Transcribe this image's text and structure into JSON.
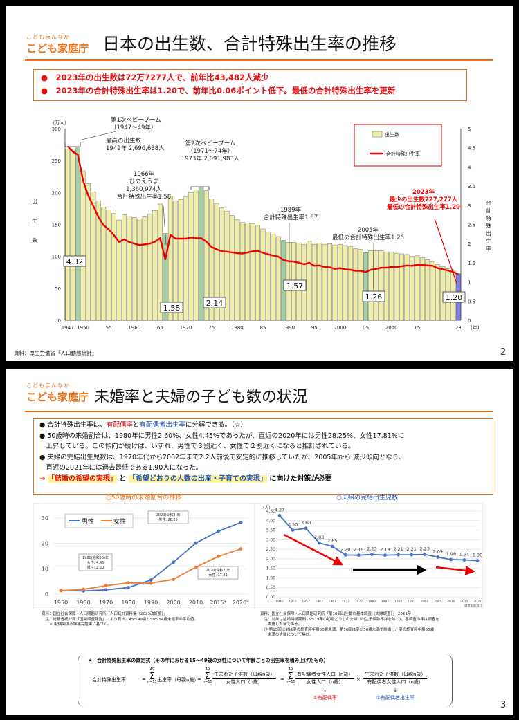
{
  "slide1": {
    "logo_small": "こどもまんなか",
    "logo_big": "こども家庭庁",
    "title": "日本の出生数、合計特殊出生率の推移",
    "bullets": [
      "●　2023年の出生数は72万7277人で、前年比43,482人減少",
      "●　2023年の合計特殊出生率は1.20で、前年比0.06ポイント低下。最低の合計特殊出生率を更新"
    ],
    "source": "資料：厚生労働省「人口動態統計」",
    "page": "2",
    "chart": {
      "left_unit": "（万人）",
      "left_axis_label": "出生数",
      "right_axis_label": "合計特殊出生率",
      "x_suffix": "(年)",
      "legend": [
        "出生数",
        "合計特殊出生率"
      ],
      "annotations": {
        "boom1": [
          "第1次ベビーブーム",
          "（1947〜49年）"
        ],
        "max": [
          "最高の出生数",
          "1949年 2,696,638人"
        ],
        "hinoe": [
          "1966年",
          "ひのえうま",
          "1,360,974人",
          "合計特殊出生率1.58"
        ],
        "boom2": [
          "第2次ベビーブーム",
          "（1971〜74年）",
          "1973年 2,091,983人"
        ],
        "y1989": [
          "1989年",
          "合計特殊出生率1.57"
        ],
        "y2005": [
          "2005年",
          "最低の合計特殊出生率1.26"
        ],
        "y2023": [
          "2023年",
          "最少の出生数727,277人",
          "最低の合計特殊出生率1.20"
        ]
      },
      "value_labels": [
        "4.32",
        "1.58",
        "2.14",
        "1.57",
        "1.26",
        "1.20"
      ]
    }
  },
  "slide2": {
    "logo_small": "こどもまんなか",
    "logo_big": "こども家庭庁",
    "title": "未婚率と夫婦の子ども数の状況",
    "bullets": [
      "● 合計特殊出生率は、有配偶率と有配偶者出生率に分解できる。（☆）",
      "● 50歳時の未婚割合は、1980年に男性2.60%、女性4.45%であったが、直近の2020年には男性28.25%、女性17.81%に",
      "　上昇している。この傾向が続けば、いずれ、男性で３割近く、女性で２割近くになると推計されている。",
      "● 夫婦の完結出生児数は、1970年代から2002年まで2.2人前後で安定的に推移していたが、2005年から 減少傾向となり、",
      "　直近の2021年には過去最低である1.90人になった。"
    ],
    "b1_key": "有配偶率",
    "b1_key2": "有配偶者出生率",
    "conclusion_arrow": "⇒",
    "conclusion_a": "「結婚の希望の実現」",
    "conclusion_and": "と",
    "conclusion_b": "「希望どおりの人数の出産・子育ての実現」",
    "conclusion_end": "に向けた対策が必要",
    "chart1_caption": "○50歳時の未婚割合の推移",
    "chart2_caption": "○夫婦の完結出生児数",
    "chart1_notes": [
      "資料：国立社会保障・人口問題研究所「人口統計資料集（2023改訂版）」",
      "　注：総務省統計局「国勢調査報告」により算出。45〜49歳と50〜54歳未婚率の平均値。",
      "　　＊ 配偶関係不詳補完結果に基づく。"
    ],
    "chart2_notes": [
      "資料：国立社会保障・人口問題研究所「第16回出生動向基本調査（夫婦調査）」(2021年)",
      "　注：対象は結婚持続期間15〜19年の初婚どうしの夫婦（出生子供数不詳を除く）。各調査の年は調査を",
      "　　実施した年である。",
      "　注 第15回以前は妻の調査時年齢50歳未満、第16回は妻が50歳未満で結婚し、妻の調査時年齢55歳",
      "　　未満の夫婦について集計。"
    ],
    "formula_title": "★　合計特殊出生率の算定式（その年における15〜49歳の女性について年齢ごとの出生率を積み上げたもの）",
    "formula_lhs": "合計特殊出生率",
    "formula_t1": "出生率（母親n歳）",
    "formula_t2_num": "生まれた子供数（母親n歳）",
    "formula_t2_den": "女性人口（n歳）",
    "formula_t3_num": "有配偶者女性人口（n歳）",
    "formula_t3_den": "女性人口（n歳）",
    "formula_t4_num": "生まれた子供数（母親n歳）",
    "formula_t4_den": "有配偶者女性人口（n歳）",
    "formula_sum_top": "49",
    "formula_sum_bot": "n=15",
    "formula_tag1": "①有配偶率",
    "formula_tag2": "②有配偶者出生率",
    "page": "3"
  },
  "chart_data": [
    {
      "type": "bar",
      "title": "日本の出生数、合計特殊出生率の推移",
      "x": [
        1947,
        1948,
        1949,
        1950,
        1951,
        1952,
        1953,
        1954,
        1955,
        1956,
        1957,
        1958,
        1959,
        1960,
        1961,
        1962,
        1963,
        1964,
        1965,
        1966,
        1967,
        1968,
        1969,
        1970,
        1971,
        1972,
        1973,
        1974,
        1975,
        1976,
        1977,
        1978,
        1979,
        1980,
        1981,
        1982,
        1983,
        1984,
        1985,
        1986,
        1987,
        1988,
        1989,
        1990,
        1991,
        1992,
        1993,
        1994,
        1995,
        1996,
        1997,
        1998,
        1999,
        2000,
        2001,
        2002,
        2003,
        2004,
        2005,
        2006,
        2007,
        2008,
        2009,
        2010,
        2011,
        2012,
        2013,
        2014,
        2015,
        2016,
        2017,
        2018,
        2019,
        2020,
        2021,
        2022,
        2023
      ],
      "x_ticks": [
        "1947",
        "1950",
        "55",
        "1960",
        "65",
        "1970",
        "75",
        "1980",
        "85",
        "1990",
        "95",
        "2000",
        "05",
        "2010",
        "15",
        "23"
      ],
      "series": [
        {
          "name": "出生数",
          "axis": "left",
          "values": [
            268,
            268,
            270,
            234,
            214,
            201,
            187,
            177,
            173,
            167,
            157,
            165,
            163,
            161,
            159,
            162,
            166,
            172,
            182,
            136,
            194,
            187,
            189,
            193,
            200,
            204,
            209,
            203,
            190,
            183,
            176,
            171,
            164,
            158,
            153,
            152,
            151,
            149,
            143,
            138,
            135,
            131,
            125,
            122,
            122,
            121,
            119,
            124,
            119,
            121,
            119,
            120,
            118,
            119,
            117,
            115,
            112,
            111,
            106,
            109,
            109,
            109,
            107,
            107,
            105,
            104,
            103,
            100,
            101,
            98,
            95,
            92,
            87,
            84,
            81,
            77,
            73
          ]
        },
        {
          "name": "合計特殊出生率",
          "axis": "right",
          "values": [
            4.54,
            4.4,
            4.32,
            3.65,
            3.26,
            2.98,
            2.69,
            2.48,
            2.37,
            2.22,
            2.04,
            2.11,
            2.04,
            2.0,
            1.96,
            1.98,
            2.0,
            2.05,
            2.14,
            1.58,
            2.23,
            2.13,
            2.13,
            2.13,
            2.16,
            2.14,
            2.14,
            2.05,
            1.91,
            1.85,
            1.8,
            1.79,
            1.77,
            1.75,
            1.74,
            1.77,
            1.8,
            1.81,
            1.76,
            1.72,
            1.69,
            1.66,
            1.57,
            1.54,
            1.53,
            1.5,
            1.46,
            1.5,
            1.42,
            1.43,
            1.39,
            1.38,
            1.34,
            1.36,
            1.33,
            1.32,
            1.29,
            1.29,
            1.26,
            1.32,
            1.34,
            1.37,
            1.37,
            1.39,
            1.39,
            1.41,
            1.43,
            1.42,
            1.45,
            1.44,
            1.43,
            1.42,
            1.36,
            1.33,
            1.3,
            1.26,
            1.2
          ]
        }
      ],
      "ylim_left": [
        0,
        300
      ],
      "ylim_right": [
        0,
        5
      ],
      "y_ticks_left": [
        "0",
        "50",
        "100",
        "150",
        "200",
        "250",
        "300"
      ],
      "y_ticks_right": [
        "0",
        "0.5",
        "1",
        "1.5",
        "2",
        "2.5",
        "3",
        "3.5",
        "4",
        "4.5",
        "5"
      ],
      "highlight_years": [
        1949,
        1966,
        1973,
        1989,
        2005,
        2023
      ]
    },
    {
      "type": "line",
      "title": "50歳時の未婚割合の推移",
      "x": [
        "1950",
        "1960",
        "1970",
        "1980",
        "1990",
        "2000",
        "2010",
        "2015*",
        "2020*"
      ],
      "series": [
        {
          "name": "男性",
          "color": "#4472c4",
          "values": [
            1.45,
            1.26,
            1.7,
            2.6,
            5.57,
            12.57,
            20.14,
            24.77,
            28.25
          ]
        },
        {
          "name": "女性",
          "color": "#ed7d31",
          "values": [
            1.35,
            1.88,
            3.33,
            4.45,
            4.33,
            5.82,
            10.61,
            14.89,
            17.81
          ]
        }
      ],
      "ylim": [
        0,
        30
      ],
      "y_ticks": [
        "0",
        "10",
        "20",
        "30"
      ],
      "callouts": [
        [
          "1980(昭和55)年",
          "女性: 4.45",
          "男性: 2.60"
        ],
        [
          "2020(令和2)年",
          "男性: 28.25"
        ],
        [
          "2020(令和2)年",
          "女性: 17.81"
        ]
      ]
    },
    {
      "type": "line",
      "title": "夫婦の完結出生児数",
      "ylabel": "(人)",
      "x": [
        "1940",
        "1952",
        "1957",
        "1962",
        "1967",
        "1972",
        "1977",
        "1982",
        "1987",
        "1992",
        "1997",
        "2002",
        "2005",
        "2010",
        "2015",
        "2021"
      ],
      "x_suffix": "(調査年次(年))",
      "series": [
        {
          "name": "完結出生児数",
          "color": "#4472c4",
          "values": [
            4.27,
            3.5,
            3.6,
            2.83,
            2.65,
            2.2,
            2.19,
            2.23,
            2.19,
            2.21,
            2.21,
            2.23,
            2.09,
            1.96,
            1.94,
            1.9
          ]
        }
      ],
      "ylim": [
        0,
        4.5
      ],
      "y_ticks": [
        "0.00",
        "0.50",
        "1.00",
        "1.50",
        "2.00",
        "2.50",
        "3.00",
        "3.50",
        "4.00",
        "4.50"
      ]
    }
  ]
}
